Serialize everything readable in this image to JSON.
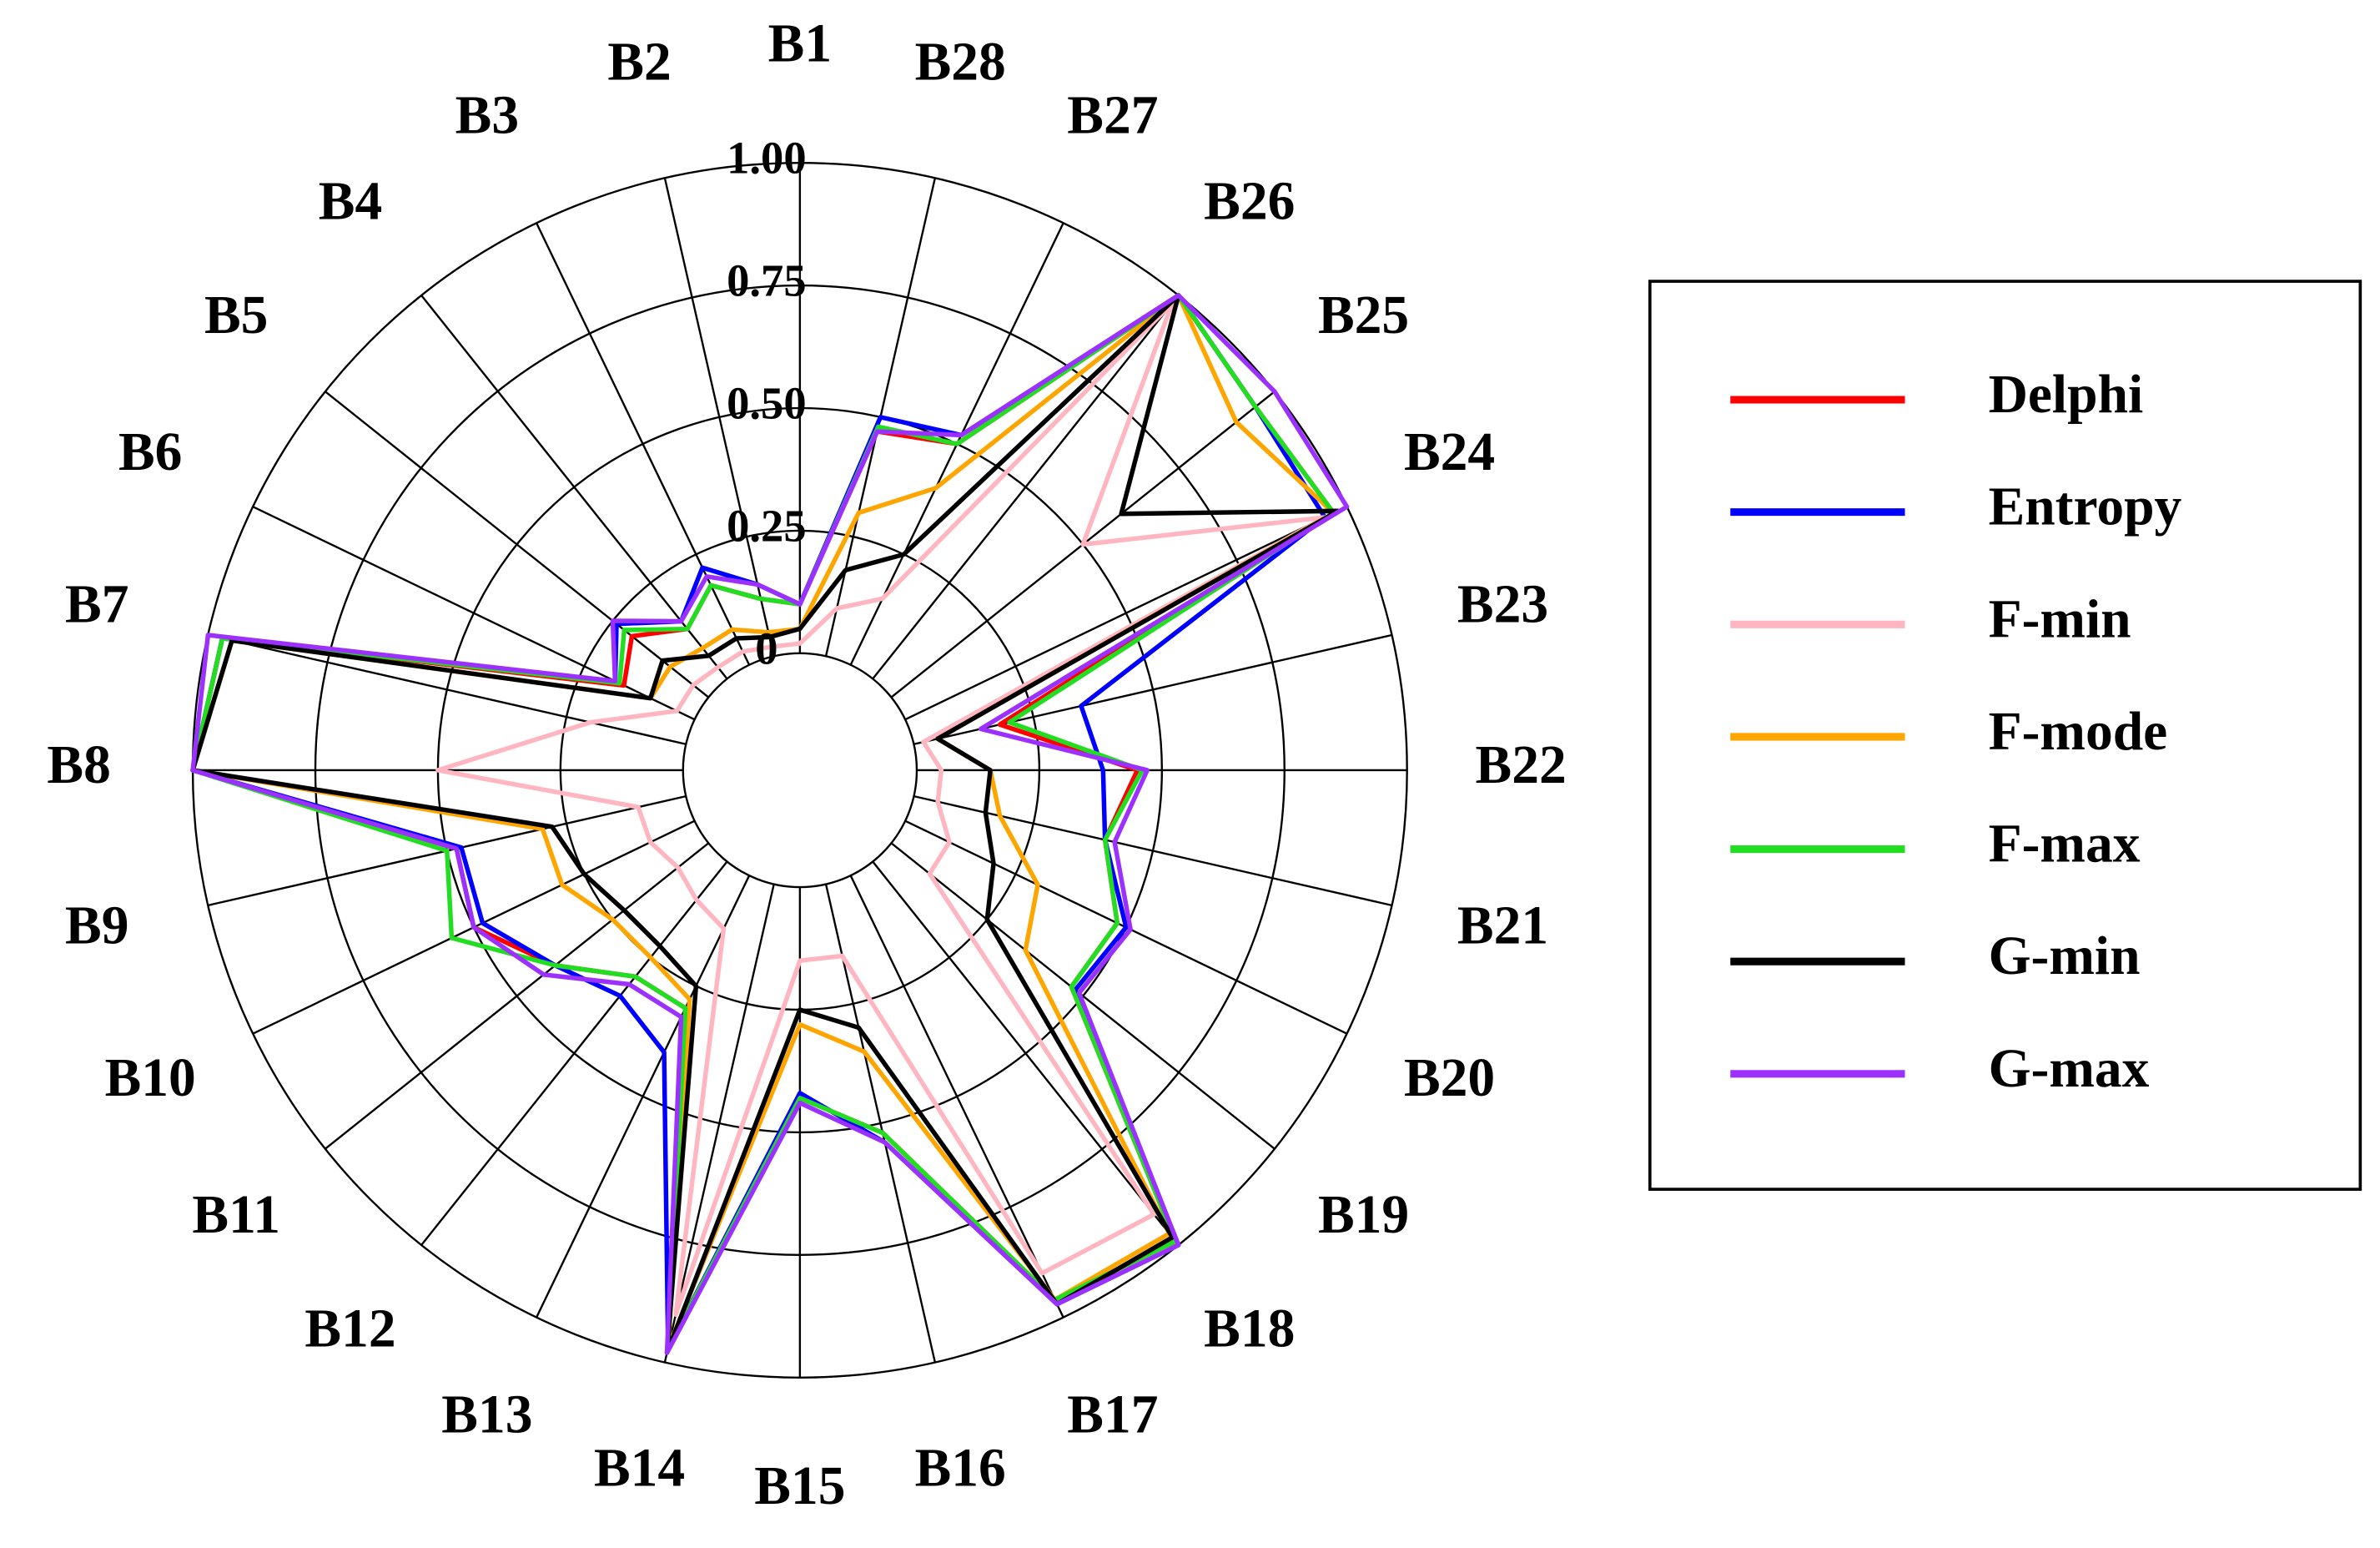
{
  "chart_data": {
    "type": "radar",
    "categories": [
      "B1",
      "B2",
      "B3",
      "B4",
      "B5",
      "B6",
      "B7",
      "B8",
      "B9",
      "B10",
      "B11",
      "B12",
      "B13",
      "B14",
      "B15",
      "B16",
      "B17",
      "B18",
      "B19",
      "B20",
      "B21",
      "B22",
      "B23",
      "B24",
      "B25",
      "B26",
      "B27",
      "B28"
    ],
    "rlim": [
      0,
      1
    ],
    "rticks": [
      0,
      0.25,
      {
        "value": 0.5,
        "label": "0.50"
      },
      0.75,
      {
        "value": 1,
        "label": "1.00"
      }
    ],
    "grid": true,
    "legend": "right",
    "series": [
      {
        "name": "Delphi",
        "color": "#ff0000",
        "values": [
          0.1,
          0.12,
          0.18,
          0.13,
          0.2,
          0.16,
          0.97,
          1.0,
          0.48,
          0.5,
          0.4,
          0.3,
          0.3,
          0.97,
          0.43,
          0.52,
          0.96,
          0.99,
          0.47,
          0.48,
          0.4,
          0.45,
          0.18,
          0.97,
          0.95,
          1.0,
          0.5,
          0.47
        ]
      },
      {
        "name": "Entropy",
        "color": "#0000ff",
        "values": [
          0.1,
          0.15,
          0.22,
          0.15,
          0.24,
          0.18,
          0.97,
          1.0,
          0.47,
          0.48,
          0.4,
          0.35,
          0.4,
          0.97,
          0.42,
          0.54,
          0.97,
          1.0,
          0.48,
          0.5,
          0.4,
          0.38,
          0.35,
          0.95,
          0.95,
          1.0,
          0.52,
          0.5
        ]
      },
      {
        "name": "F-min",
        "color": "#ffb6c1",
        "values": [
          0.02,
          0.02,
          0.03,
          0.03,
          0.04,
          0.04,
          0.2,
          0.5,
          0.1,
          0.1,
          0.08,
          0.1,
          0.12,
          0.9,
          0.15,
          0.15,
          0.9,
          0.92,
          0.1,
          0.1,
          0.05,
          0.05,
          0.02,
          0.95,
          0.5,
          0.98,
          0.15,
          0.1
        ]
      },
      {
        "name": "F-mode",
        "color": "#ffa500",
        "values": [
          0.05,
          0.05,
          0.08,
          0.08,
          0.1,
          0.1,
          0.95,
          1.0,
          0.3,
          0.3,
          0.25,
          0.25,
          0.28,
          0.97,
          0.28,
          0.35,
          0.96,
          0.97,
          0.35,
          0.3,
          0.18,
          0.15,
          0.05,
          0.97,
          0.9,
          1.0,
          0.4,
          0.3
        ]
      },
      {
        "name": "F-max",
        "color": "#22dd22",
        "values": [
          0.1,
          0.12,
          0.18,
          0.13,
          0.22,
          0.17,
          0.97,
          1.0,
          0.5,
          0.55,
          0.4,
          0.3,
          0.3,
          0.97,
          0.43,
          0.52,
          0.96,
          0.99,
          0.47,
          0.48,
          0.4,
          0.46,
          0.2,
          0.97,
          0.95,
          1.0,
          0.5,
          0.48
        ]
      },
      {
        "name": "G-min",
        "color": "#000000",
        "values": [
          0.05,
          0.04,
          0.06,
          0.06,
          0.12,
          0.1,
          0.95,
          1.0,
          0.28,
          0.25,
          0.22,
          0.22,
          0.25,
          0.98,
          0.25,
          0.3,
          0.97,
          0.98,
          0.25,
          0.2,
          0.15,
          0.15,
          0.05,
          0.98,
          0.6,
          1.0,
          0.25,
          0.18
        ]
      },
      {
        "name": "G-max",
        "color": "#9b30ff",
        "values": [
          0.1,
          0.15,
          0.2,
          0.15,
          0.25,
          0.18,
          1.0,
          1.0,
          0.48,
          0.5,
          0.43,
          0.32,
          0.32,
          0.98,
          0.44,
          0.54,
          0.97,
          1.0,
          0.49,
          0.51,
          0.42,
          0.47,
          0.14,
          1.0,
          1.0,
          1.0,
          0.52,
          0.47
        ]
      }
    ]
  }
}
